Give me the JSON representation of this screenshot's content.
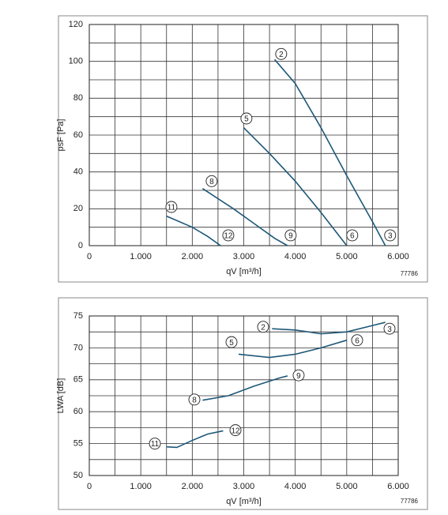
{
  "chart_data": [
    {
      "type": "line",
      "xlabel": "qV [m³/h]",
      "ylabel": "psF [Pa]",
      "note": "77786",
      "xlim": [
        0,
        6000
      ],
      "ylim": [
        0,
        120
      ],
      "xticks": [
        0,
        {
          "value": 1000,
          "label": "1.000"
        },
        {
          "value": 2000,
          "label": "2.000"
        },
        {
          "value": 3000,
          "label": "3.000"
        },
        {
          "value": 4000,
          "label": "4.000"
        },
        {
          "value": 5000,
          "label": "5.000"
        },
        {
          "value": 6000,
          "label": "6.000"
        }
      ],
      "yticks": [
        0,
        20,
        40,
        60,
        80,
        100,
        120
      ],
      "xgrid": [
        500,
        1500,
        2500,
        3500,
        4500,
        5500
      ],
      "ygrid": [
        10,
        30,
        50,
        70,
        90,
        110
      ],
      "series": [
        {
          "color": "#1d5878",
          "x": [
            3600,
            4000,
            4500,
            5000,
            5500,
            5750
          ],
          "values": [
            101,
            88,
            64,
            38,
            13,
            0
          ]
        },
        {
          "color": "#1d5878",
          "x": [
            3000,
            3500,
            4000,
            4500,
            5000
          ],
          "values": [
            64,
            50,
            35,
            18,
            0
          ]
        },
        {
          "color": "#1d5878",
          "x": [
            2200,
            2800,
            3200,
            3600,
            3850
          ],
          "values": [
            31,
            20,
            12,
            4,
            0
          ]
        },
        {
          "color": "#1d5878",
          "x": [
            1500,
            2000,
            2300,
            2550
          ],
          "values": [
            16,
            10,
            5,
            0
          ]
        }
      ],
      "annotations": [
        {
          "text": "2",
          "x": 3727,
          "y": 104
        },
        {
          "text": "3",
          "x": 5843,
          "y": 5.6
        },
        {
          "text": "5",
          "x": 3052,
          "y": 69
        },
        {
          "text": "6",
          "x": 5107,
          "y": 5.6
        },
        {
          "text": "8",
          "x": 2377,
          "y": 35
        },
        {
          "text": "9",
          "x": 3911,
          "y": 5.6
        },
        {
          "text": "11",
          "x": 1595,
          "y": 21
        },
        {
          "text": "12",
          "x": 2700,
          "y": 5.6
        }
      ]
    },
    {
      "type": "line",
      "xlabel": "qV [m³/h]",
      "ylabel": "LWA [dB]",
      "note": "77786",
      "xlim": [
        0,
        6000
      ],
      "ylim": [
        50,
        75
      ],
      "xticks": [
        0,
        {
          "value": 1000,
          "label": "1.000"
        },
        {
          "value": 2000,
          "label": "2.000"
        },
        {
          "value": 3000,
          "label": "3.000"
        },
        {
          "value": 4000,
          "label": "4.000"
        },
        {
          "value": 5000,
          "label": "5.000"
        },
        {
          "value": 6000,
          "label": "6.000"
        }
      ],
      "yticks": [
        50,
        55,
        60,
        65,
        70,
        75
      ],
      "xgrid": [
        500,
        1500,
        2500,
        3500,
        4500,
        5500
      ],
      "ygrid": [
        52.5,
        57.5,
        62.5,
        67.5,
        72.5
      ],
      "series": [
        {
          "color": "#1d5878",
          "x": [
            3550,
            4000,
            4500,
            5000,
            5500,
            5750
          ],
          "values": [
            73,
            72.8,
            72.2,
            72.5,
            73.5,
            74
          ]
        },
        {
          "color": "#1d5878",
          "x": [
            2900,
            3500,
            4000,
            4500,
            5000
          ],
          "values": [
            69,
            68.5,
            69,
            70,
            71.2
          ]
        },
        {
          "color": "#1d5878",
          "x": [
            2200,
            2700,
            3200,
            3700,
            3850
          ],
          "values": [
            61.8,
            62.5,
            64,
            65.3,
            65.6
          ]
        },
        {
          "color": "#1d5878",
          "x": [
            1500,
            1700,
            2000,
            2300,
            2600
          ],
          "values": [
            54.5,
            54.4,
            55.5,
            56.5,
            57
          ]
        }
      ],
      "annotations": [
        {
          "text": "2",
          "x": 3376,
          "y": 73.3
        },
        {
          "text": "3",
          "x": 5831,
          "y": 73
        },
        {
          "text": "5",
          "x": 2762,
          "y": 70.9
        },
        {
          "text": "6",
          "x": 5202,
          "y": 71.2
        },
        {
          "text": "8",
          "x": 2041,
          "y": 61.9
        },
        {
          "text": "9",
          "x": 4066,
          "y": 65.7
        },
        {
          "text": "11",
          "x": 1274,
          "y": 55
        },
        {
          "text": "12",
          "x": 2839,
          "y": 57.1
        }
      ]
    }
  ]
}
